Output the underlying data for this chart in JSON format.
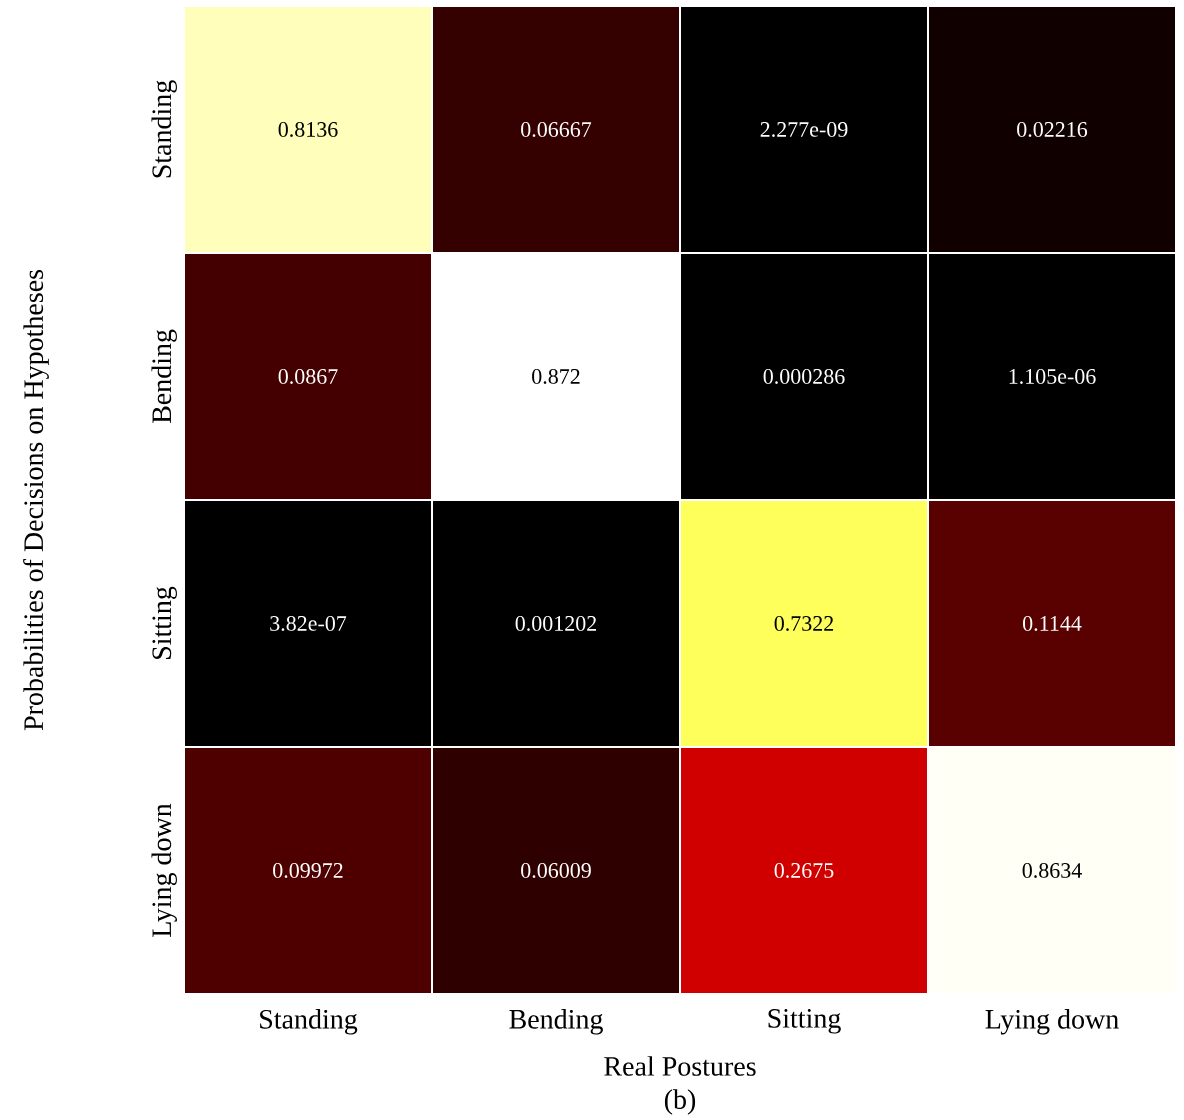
{
  "chart_data": {
    "type": "heatmap",
    "categories": [
      "Standing",
      "Bending",
      "Sitting",
      "Lying down"
    ],
    "y_categories": [
      "Standing",
      "Bending",
      "Sitting",
      "Lying down"
    ],
    "cells": [
      [
        0.8136,
        0.06667,
        2.277e-09,
        0.02216
      ],
      [
        0.0867,
        0.872,
        0.000286,
        1.105e-06
      ],
      [
        3.82e-07,
        0.001202,
        0.7322,
        0.1144
      ],
      [
        0.09972,
        0.06009,
        0.2675,
        0.8634
      ]
    ],
    "cell_labels": [
      [
        "0.8136",
        "0.06667",
        "2.277e-09",
        "0.02216"
      ],
      [
        "0.0867",
        "0.872",
        "0.000286",
        "1.105e-06"
      ],
      [
        "3.82e-07",
        "0.001202",
        "0.7322",
        "0.1144"
      ],
      [
        "0.09972",
        "0.06009",
        "0.2675",
        "0.8634"
      ]
    ],
    "xlabel": "Real Postures",
    "ylabel": "Probabilities of Decisions on Hypotheses",
    "annotations": [
      "(b)"
    ]
  }
}
